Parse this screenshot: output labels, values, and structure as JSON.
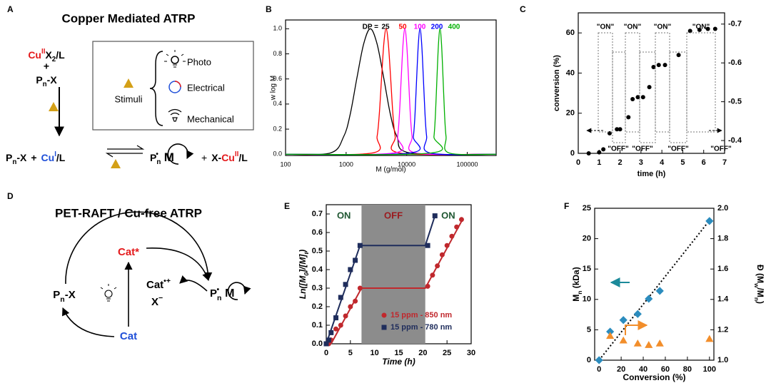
{
  "panel_labels": [
    "A",
    "B",
    "C",
    "D",
    "E",
    "F"
  ],
  "diagram_a": {
    "title": "Copper Mediated ATRP",
    "catalyst": [
      "Cu",
      "II",
      "X",
      "2",
      "/L"
    ],
    "plus": "+",
    "initiator": [
      "P",
      "n",
      "-X"
    ],
    "stimuli": "Stimuli",
    "stimuli_types": [
      "Photo",
      "Electrical",
      "Mechanical"
    ],
    "dormant": [
      "P",
      "n",
      "-X",
      "+",
      "Cu",
      "I",
      "/L"
    ],
    "active": [
      "P",
      "n",
      "•",
      "M"
    ],
    "deactivator": [
      "+",
      "X-",
      "Cu",
      "II",
      "/L"
    ]
  },
  "diagram_d": {
    "title": "PET-RAFT / Cu-free ATRP",
    "excited": "Cat*",
    "ground": "Cat",
    "radical_cation": [
      "Cat",
      "•+"
    ],
    "counter_ion": [
      "X",
      "−"
    ],
    "initiator": [
      "P",
      "n",
      "-X"
    ],
    "active": [
      "P",
      "n",
      "•",
      "M"
    ]
  },
  "chart_data": [
    {
      "type": "line",
      "x_label": "M (g/mol)",
      "y_label": "w log M",
      "log_x": true,
      "xlim": [
        100,
        300000
      ],
      "xticks": [
        100,
        1000,
        10000,
        100000
      ],
      "ylim": [
        -0.01,
        1.07
      ],
      "yticks": [
        {
          "value": 0,
          "label": "0.0"
        },
        0.2,
        0.4,
        0.6,
        0.8,
        {
          "value": 1,
          "label": "1.0"
        }
      ],
      "legend_title": "DP =",
      "series": [
        {
          "name": "25",
          "color": "#000000",
          "x": [
            100,
            550,
            910,
            1170,
            1510,
            1950,
            2510,
            3240,
            4170,
            5370,
            6920,
            11480,
            300000
          ],
          "values": [
            0,
            0.01,
            0.14,
            0.32,
            0.61,
            0.88,
            1.0,
            0.88,
            0.61,
            0.32,
            0.14,
            0.01,
            0
          ]
        },
        {
          "name": "50",
          "color": "#ff0000",
          "x": [
            100,
            2720,
            3240,
            3530,
            3850,
            4190,
            4570,
            4980,
            5430,
            5920,
            6460,
            7670,
            300000
          ],
          "values": [
            0,
            0.01,
            0.14,
            0.32,
            0.61,
            0.88,
            1.0,
            0.88,
            0.61,
            0.32,
            0.14,
            0.01,
            0
          ]
        },
        {
          "name": "100",
          "color": "#ff00ff",
          "x": [
            100,
            6170,
            7080,
            7590,
            8130,
            8710,
            9330,
            10000,
            10720,
            11480,
            12300,
            14130,
            300000
          ],
          "values": [
            0,
            0.01,
            0.14,
            0.32,
            0.61,
            0.88,
            1.0,
            0.88,
            0.61,
            0.32,
            0.14,
            0.01,
            0
          ]
        },
        {
          "name": "200",
          "color": "#0000ff",
          "x": [
            100,
            11350,
            12880,
            13730,
            14620,
            15580,
            16600,
            17680,
            18840,
            20070,
            21380,
            24270,
            300000
          ],
          "values": [
            0,
            0.01,
            0.14,
            0.32,
            0.61,
            0.88,
            1.0,
            0.88,
            0.61,
            0.32,
            0.14,
            0.01,
            0
          ]
        },
        {
          "name": "400",
          "color": "#00b000",
          "x": [
            100,
            25120,
            28180,
            29850,
            31620,
            33500,
            35480,
            37580,
            39810,
            42170,
            44670,
            50120,
            300000
          ],
          "values": [
            0,
            0.01,
            0.14,
            0.32,
            0.61,
            0.88,
            1.0,
            0.88,
            0.61,
            0.32,
            0.14,
            0.01,
            0
          ]
        }
      ]
    },
    {
      "type": "scatter",
      "x_label": "time (h)",
      "y_label": "conversion (%)",
      "xlim": [
        0,
        7
      ],
      "xticks": [
        0,
        1,
        2,
        3,
        4,
        5,
        6,
        7
      ],
      "ylim": [
        0,
        70
      ],
      "yticks": [
        0,
        20,
        40,
        60
      ],
      "y2lim": [
        -0.367,
        -0.729
      ],
      "y2ticks": [
        -0.4,
        -0.5,
        -0.6,
        -0.7
      ],
      "on_labels": [
        "\"ON\"",
        "\"ON\"",
        "\"ON\"",
        "\"ON\""
      ],
      "off_labels": [
        "\"OFF\"",
        "\"OFF\"",
        "\"OFF\"",
        "\"OFF\""
      ],
      "series": [
        {
          "color": "#000000",
          "marker": "circle",
          "x": [
            0.5,
            1.0,
            1.2,
            1.5,
            1.85,
            2.0,
            2.4,
            2.6,
            2.85,
            3.1,
            3.4,
            3.6,
            3.85,
            4.15,
            4.8,
            5.35,
            5.8,
            6.2,
            6.55
          ],
          "values": [
            0,
            0.5,
            2,
            10,
            12,
            12,
            18,
            27,
            28,
            28,
            33,
            43,
            44,
            44,
            49,
            61,
            61.5,
            62,
            62
          ]
        }
      ]
    },
    {
      "type": "scatter",
      "x_label": "Time (h)",
      "y_label": [
        "Ln([M",
        "0",
        "]/[M]",
        "t",
        ")"
      ],
      "xlim": [
        0,
        30
      ],
      "xticks": [
        0,
        5,
        10,
        15,
        20,
        25,
        30
      ],
      "ylim": [
        0,
        0.75
      ],
      "yticks": [
        {
          "value": 0,
          "label": "0.0"
        },
        0.1,
        0.2,
        0.3,
        0.4,
        0.5,
        0.6,
        0.7
      ],
      "shade": [
        7.3,
        20.5
      ],
      "phase_labels": [
        "ON",
        "OFF",
        "ON"
      ],
      "phase_label_colors": [
        "#1e5631",
        "#9b1b1f",
        "#1e5631"
      ],
      "legend": "lower right",
      "series": [
        {
          "name": "15 ppm - 850 nm",
          "color": "#c0282d",
          "marker": "circle",
          "x": [
            0.5,
            1,
            2,
            3,
            4,
            5,
            6,
            7,
            21,
            22,
            23,
            24,
            25,
            26,
            27,
            28
          ],
          "values": [
            0,
            0.02,
            0.08,
            0.1,
            0.15,
            0.2,
            0.23,
            0.3,
            0.31,
            0.37,
            0.42,
            0.48,
            0.53,
            0.58,
            0.63,
            0.67
          ],
          "fit_x": [
            1,
            7.3,
            20.5,
            28
          ],
          "fit_values": [
            0,
            0.3,
            0.3,
            0.66
          ]
        },
        {
          "name": "15 ppm - 780 nm",
          "color": "#1f2d5c",
          "marker": "square",
          "x": [
            0,
            0.5,
            1,
            2,
            3,
            4,
            5,
            6,
            7,
            21,
            22.5
          ],
          "values": [
            0,
            0.02,
            0.06,
            0.14,
            0.25,
            0.32,
            0.4,
            0.45,
            0.53,
            0.53,
            0.69
          ],
          "fit_x": [
            0,
            7,
            20.5,
            22.5
          ],
          "fit_values": [
            0,
            0.53,
            0.53,
            0.69
          ]
        }
      ]
    },
    {
      "type": "scatter",
      "x_label": "Conversion (%)",
      "y_label": [
        "M",
        "n",
        " (kDa)"
      ],
      "y2_label": [
        "Đ (M",
        "w",
        "/M",
        "n",
        ")"
      ],
      "xlim": [
        -4,
        104
      ],
      "xticks": [
        0,
        20,
        40,
        60,
        80,
        100
      ],
      "ylim": [
        0,
        25
      ],
      "yticks": [
        0,
        5,
        10,
        15,
        20,
        25
      ],
      "y2lim": [
        1.0,
        2.0
      ],
      "y2ticks": [
        {
          "value": 1,
          "label": "1.0"
        },
        1.2,
        1.4,
        1.6,
        1.8,
        {
          "value": 2,
          "label": "2.0"
        }
      ],
      "trend": {
        "x": [
          0,
          100
        ],
        "values": [
          0,
          23
        ]
      },
      "series": [
        {
          "color": "#2b8cbe",
          "marker": "diamond",
          "x": [
            0,
            10,
            22,
            35,
            45,
            55,
            100
          ],
          "values": [
            0,
            4.7,
            6.6,
            7.6,
            10.1,
            11.4,
            22.9
          ]
        },
        {
          "color": "#f28e2b",
          "marker": "triangle",
          "axis": "y2",
          "x": [
            10,
            22,
            35,
            45,
            55,
            100
          ],
          "values": [
            1.16,
            1.13,
            1.11,
            1.1,
            1.11,
            1.14
          ]
        }
      ]
    }
  ]
}
